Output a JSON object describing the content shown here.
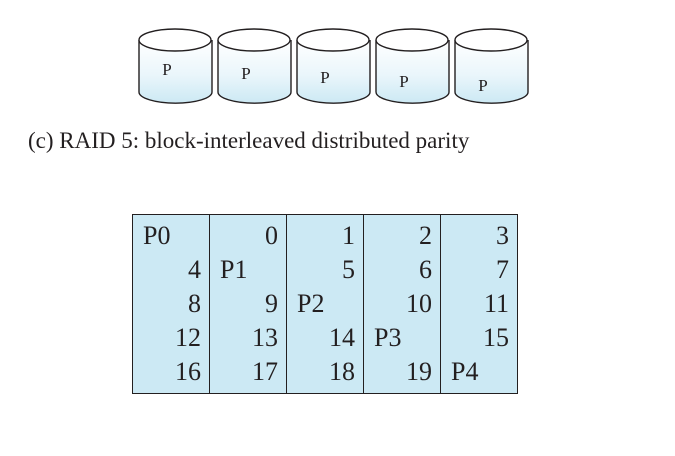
{
  "disks": {
    "parity_label": "P",
    "count": 5,
    "fill_color": "#cce9f4",
    "stroke_color": "#231f20"
  },
  "caption": "(c) RAID 5: block-interleaved distributed parity",
  "table": {
    "rows": [
      [
        "P0",
        "0",
        "1",
        "2",
        "3"
      ],
      [
        "4",
        "P1",
        "5",
        "6",
        "7"
      ],
      [
        "8",
        "9",
        "P2",
        "10",
        "11"
      ],
      [
        "12",
        "13",
        "14",
        "P3",
        "15"
      ],
      [
        "16",
        "17",
        "18",
        "19",
        "P4"
      ]
    ]
  }
}
